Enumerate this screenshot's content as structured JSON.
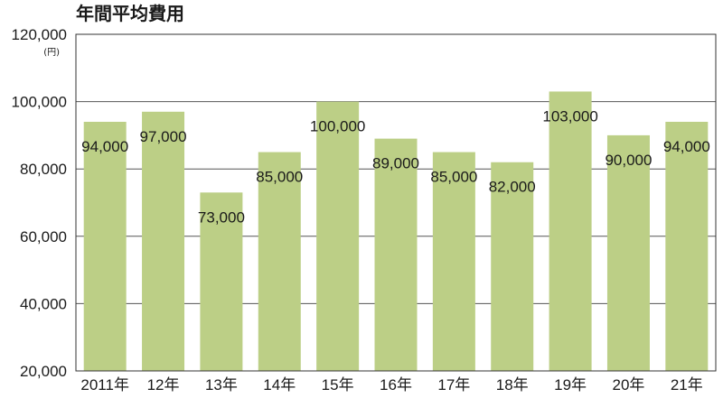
{
  "chart_data": {
    "type": "bar",
    "title": "年間平均費用",
    "unit_label": "(円)",
    "categories": [
      "2011年",
      "12年",
      "13年",
      "14年",
      "15年",
      "16年",
      "17年",
      "18年",
      "19年",
      "20年",
      "21年"
    ],
    "values": [
      94000,
      97000,
      73000,
      85000,
      100000,
      89000,
      85000,
      82000,
      103000,
      90000,
      94000
    ],
    "value_labels": [
      "94,000",
      "97,000",
      "73,000",
      "85,000",
      "100,000",
      "89,000",
      "85,000",
      "82,000",
      "103,000",
      "90,000",
      "94,000"
    ],
    "y_ticks": [
      20000,
      40000,
      60000,
      80000,
      100000,
      120000
    ],
    "y_tick_labels": [
      "20,000",
      "40,000",
      "60,000",
      "80,000",
      "100,000",
      "120,000"
    ],
    "ylim": [
      20000,
      120000
    ],
    "grid": true,
    "colors": {
      "bar": "#bccf86",
      "grid": "#555555",
      "axis": "#333333"
    }
  }
}
